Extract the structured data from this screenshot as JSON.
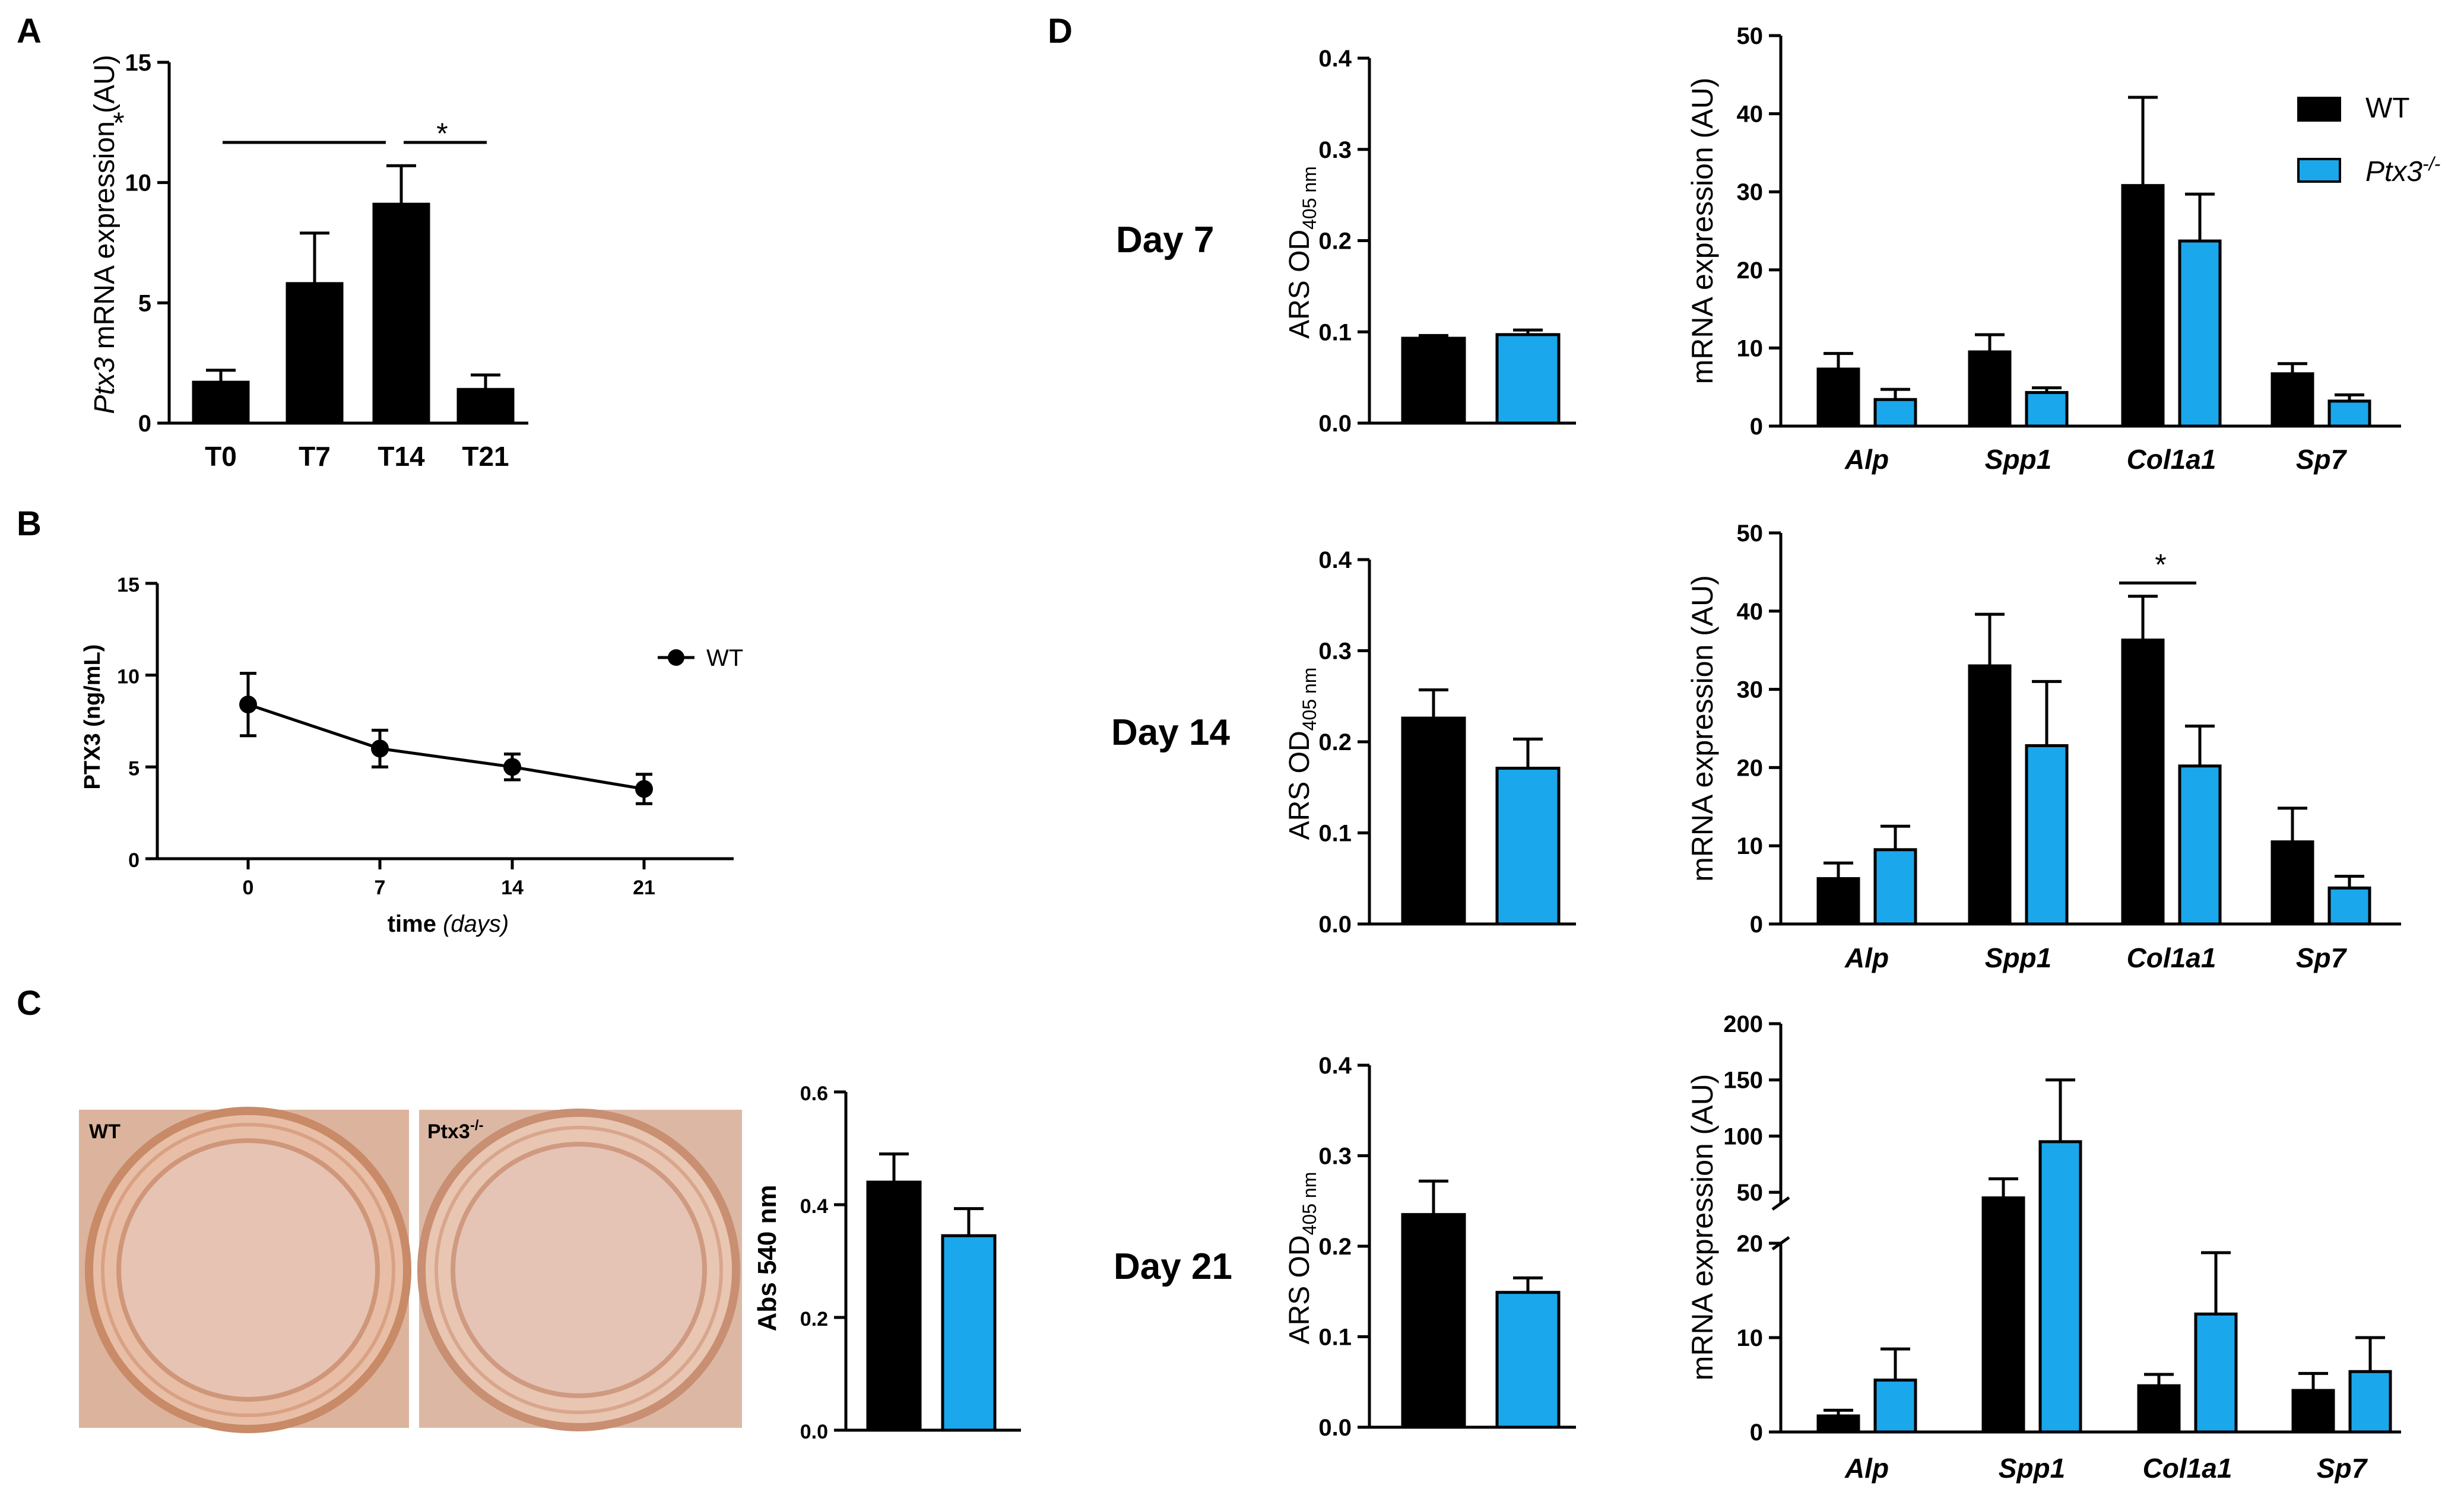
{
  "panels": {
    "A": "A",
    "B": "B",
    "C": "C",
    "D": "D"
  },
  "colors": {
    "wt": "#000000",
    "ko": "#1aa7ec"
  },
  "chart_data": [
    {
      "id": "A",
      "type": "bar",
      "ylabel_italic": "Ptx3",
      "ylabel_rest": " mRNA expression (AU)",
      "categories": [
        "T0",
        "T7",
        "T14",
        "T21"
      ],
      "values": [
        1.7,
        5.8,
        9.1,
        1.4
      ],
      "errors": [
        0.5,
        2.1,
        1.6,
        0.6
      ],
      "ylim": [
        0,
        15
      ],
      "yticks": [
        "0",
        "5",
        "10",
        "15"
      ],
      "significance": [
        "*",
        "*"
      ]
    },
    {
      "id": "B",
      "type": "line",
      "ylabel": "PTX3 (ng/mL)",
      "xlabel_bold": "time",
      "xlabel_italic": "(days)",
      "x": [
        "0",
        "7",
        "14",
        "21"
      ],
      "series": [
        {
          "name": "WT",
          "values": [
            8.4,
            6.0,
            5.0,
            3.8
          ],
          "errors": [
            1.7,
            1.0,
            0.7,
            0.8
          ]
        }
      ],
      "ylim": [
        0,
        15
      ],
      "yticks": [
        "0",
        "5",
        "10",
        "15"
      ]
    },
    {
      "id": "C",
      "type": "bar",
      "photo_labels": {
        "wt": "WT",
        "ko": "Ptx3",
        "ko_sup": "-/-"
      },
      "ylabel": "Abs 540 nm",
      "values": [
        0.44,
        0.345
      ],
      "errors": [
        0.05,
        0.048
      ],
      "ylim": [
        0,
        0.6
      ],
      "yticks": [
        "0.0",
        "0.2",
        "0.4",
        "0.6"
      ]
    },
    {
      "id": "D-ARS",
      "type": "bar",
      "ylabel": "ARS OD",
      "ylabel_sub": "405 nm",
      "yticks": [
        "0.0",
        "0.1",
        "0.2",
        "0.3",
        "0.4"
      ],
      "ylim": [
        0,
        0.4
      ],
      "days": [
        {
          "label": "Day 7",
          "values": [
            0.093,
            0.097
          ],
          "errors": [
            0.003,
            0.005
          ]
        },
        {
          "label": "Day 14",
          "values": [
            0.226,
            0.171
          ],
          "errors": [
            0.031,
            0.032
          ]
        },
        {
          "label": "Day 21",
          "values": [
            0.235,
            0.149
          ],
          "errors": [
            0.037,
            0.016
          ]
        }
      ]
    },
    {
      "id": "D-mRNA",
      "type": "bar",
      "ylabel": "mRNA expression (AU)",
      "categories": [
        "Alp",
        "Spp1",
        "Col1a1",
        "Sp7"
      ],
      "legend": [
        "WT",
        "Ptx3",
        "-/-"
      ],
      "days": [
        {
          "label": "Day 7",
          "ylim": [
            0,
            50
          ],
          "yticks": [
            "0",
            "10",
            "20",
            "30",
            "40",
            "50"
          ],
          "wt": [
            7.3,
            9.5,
            30.8,
            6.7
          ],
          "wt_err": [
            2.0,
            2.2,
            11.3,
            1.3
          ],
          "ko": [
            3.4,
            4.3,
            23.7,
            3.2
          ],
          "ko_err": [
            1.3,
            0.6,
            6.0,
            0.8
          ],
          "significance": []
        },
        {
          "label": "Day 14",
          "ylim": [
            0,
            50
          ],
          "yticks": [
            "0",
            "10",
            "20",
            "30",
            "40",
            "50"
          ],
          "wt": [
            5.8,
            33.0,
            36.3,
            10.5
          ],
          "wt_err": [
            2.0,
            6.6,
            5.6,
            4.3
          ],
          "ko": [
            9.5,
            22.8,
            20.2,
            4.6
          ],
          "ko_err": [
            3.0,
            8.2,
            5.1,
            1.5
          ],
          "significance": [
            "*"
          ]
        },
        {
          "label": "Day 21",
          "broken_axis": true,
          "yticks_lower": [
            "0",
            "10",
            "20"
          ],
          "yticks_upper": [
            "50",
            "100",
            "150",
            "200"
          ],
          "wt": [
            1.7,
            45,
            4.9,
            4.4
          ],
          "wt_err": [
            0.6,
            17,
            1.2,
            1.8
          ],
          "ko": [
            5.5,
            95,
            12.5,
            6.4
          ],
          "ko_err": [
            3.3,
            55,
            6.5,
            3.6
          ],
          "significance": []
        }
      ]
    }
  ]
}
